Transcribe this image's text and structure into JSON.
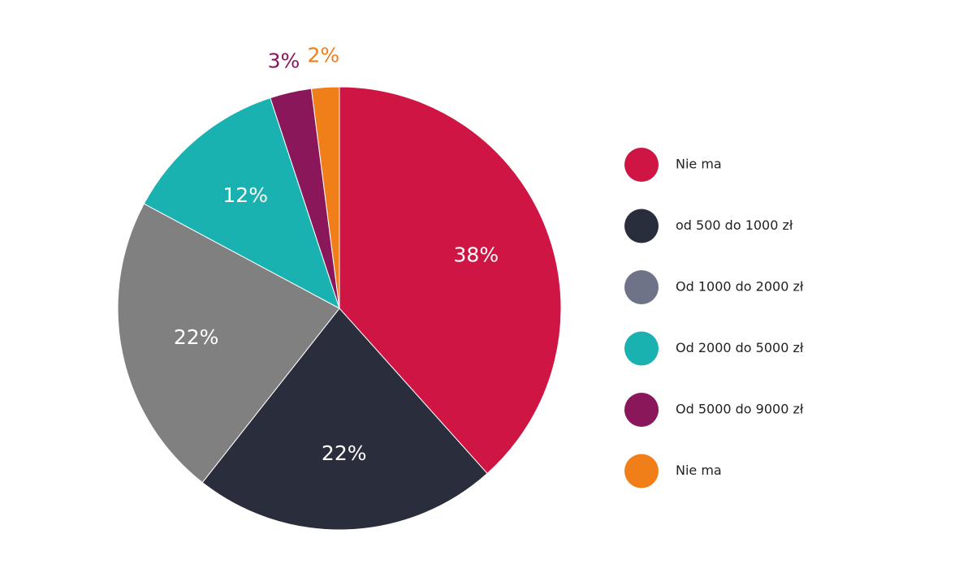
{
  "chart_data": {
    "type": "pie",
    "title": "",
    "start_angle_deg": 0,
    "direction": "clockwise",
    "legend_position": "right",
    "slices": [
      {
        "label": "Nie ma",
        "value": 38,
        "value_label": "38%",
        "color": "#cf1543",
        "legend_color": "#cf1543",
        "label_color": "#ffffff",
        "label_placement": "inside"
      },
      {
        "label": "od 500 do 1000 zł",
        "value": 22,
        "value_label": "22%",
        "color": "#2a2d3c",
        "legend_color": "#2a2d3c",
        "label_color": "#ffffff",
        "label_placement": "inside"
      },
      {
        "label": "Od 1000 do 2000 zł",
        "value": 22,
        "value_label": "22%",
        "color": "#808080",
        "legend_color": "#6e7388",
        "label_color": "#ffffff",
        "label_placement": "inside"
      },
      {
        "label": "Od 2000 do 5000 zł",
        "value": 12,
        "value_label": "12%",
        "color": "#19b2b0",
        "legend_color": "#19b2b0",
        "label_color": "#ffffff",
        "label_placement": "inside"
      },
      {
        "label": "Od 5000 do 9000 zł",
        "value": 3,
        "value_label": "3%",
        "color": "#89175a",
        "legend_color": "#89175a",
        "label_color": "#89175a",
        "label_placement": "outside"
      },
      {
        "label": "Nie ma",
        "value": 2,
        "value_label": "2%",
        "color": "#f07f1a",
        "legend_color": "#f07f1a",
        "label_color": "#f07f1a",
        "label_placement": "outside"
      }
    ]
  }
}
